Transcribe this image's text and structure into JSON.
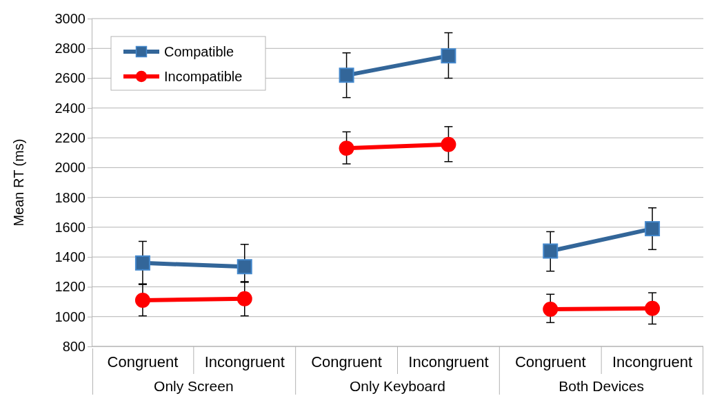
{
  "chart_data": {
    "type": "line",
    "ylabel": "Mean RT (ms)",
    "categories": [
      "Congruent",
      "Incongruent",
      "Congruent",
      "Incongruent",
      "Congruent",
      "Incongruent"
    ],
    "annotations": [
      "Only Screen",
      "Only Keyboard",
      "Both Devices"
    ],
    "ylim": [
      800,
      3000
    ],
    "yticks": [
      800,
      1000,
      1200,
      1400,
      1600,
      1800,
      2000,
      2200,
      2400,
      2600,
      2800,
      3000
    ],
    "grid": "y",
    "legend": "top left",
    "series": [
      {
        "name": "Compatible",
        "color": "#336699",
        "marker": "square",
        "values": [
          1360,
          1335,
          null,
          null,
          null,
          null
        ],
        "errors": [
          [
            1220,
            1505
          ],
          [
            1230,
            1485
          ],
          null,
          null,
          null,
          null
        ]
      },
      {
        "color": "#336699",
        "marker": "square",
        "values": [
          null,
          null,
          2620,
          2750,
          null,
          null
        ],
        "errors": [
          null,
          null,
          [
            2470,
            2770
          ],
          [
            2600,
            2905
          ],
          null,
          null
        ]
      },
      {
        "color": "#336699",
        "marker": "square",
        "values": [
          null,
          null,
          null,
          null,
          1440,
          1590
        ],
        "errors": [
          null,
          null,
          null,
          null,
          [
            1305,
            1570
          ],
          [
            1450,
            1730
          ]
        ]
      },
      {
        "name": "Incompatible",
        "color": "#ff0000",
        "marker": "circle",
        "values": [
          1110,
          1120,
          null,
          null,
          null,
          null
        ],
        "errors": [
          [
            1005,
            1215
          ],
          [
            1005,
            1235
          ],
          null,
          null,
          null,
          null
        ]
      },
      {
        "color": "#ff0000",
        "marker": "circle",
        "values": [
          null,
          null,
          2130,
          2155,
          null,
          null
        ],
        "errors": [
          null,
          null,
          [
            2025,
            2240
          ],
          [
            2040,
            2275
          ],
          null,
          null
        ]
      },
      {
        "color": "#ff0000",
        "marker": "circle",
        "values": [
          null,
          null,
          null,
          null,
          1050,
          1055
        ],
        "errors": [
          null,
          null,
          null,
          null,
          [
            960,
            1150
          ],
          [
            950,
            1160
          ]
        ]
      }
    ]
  }
}
